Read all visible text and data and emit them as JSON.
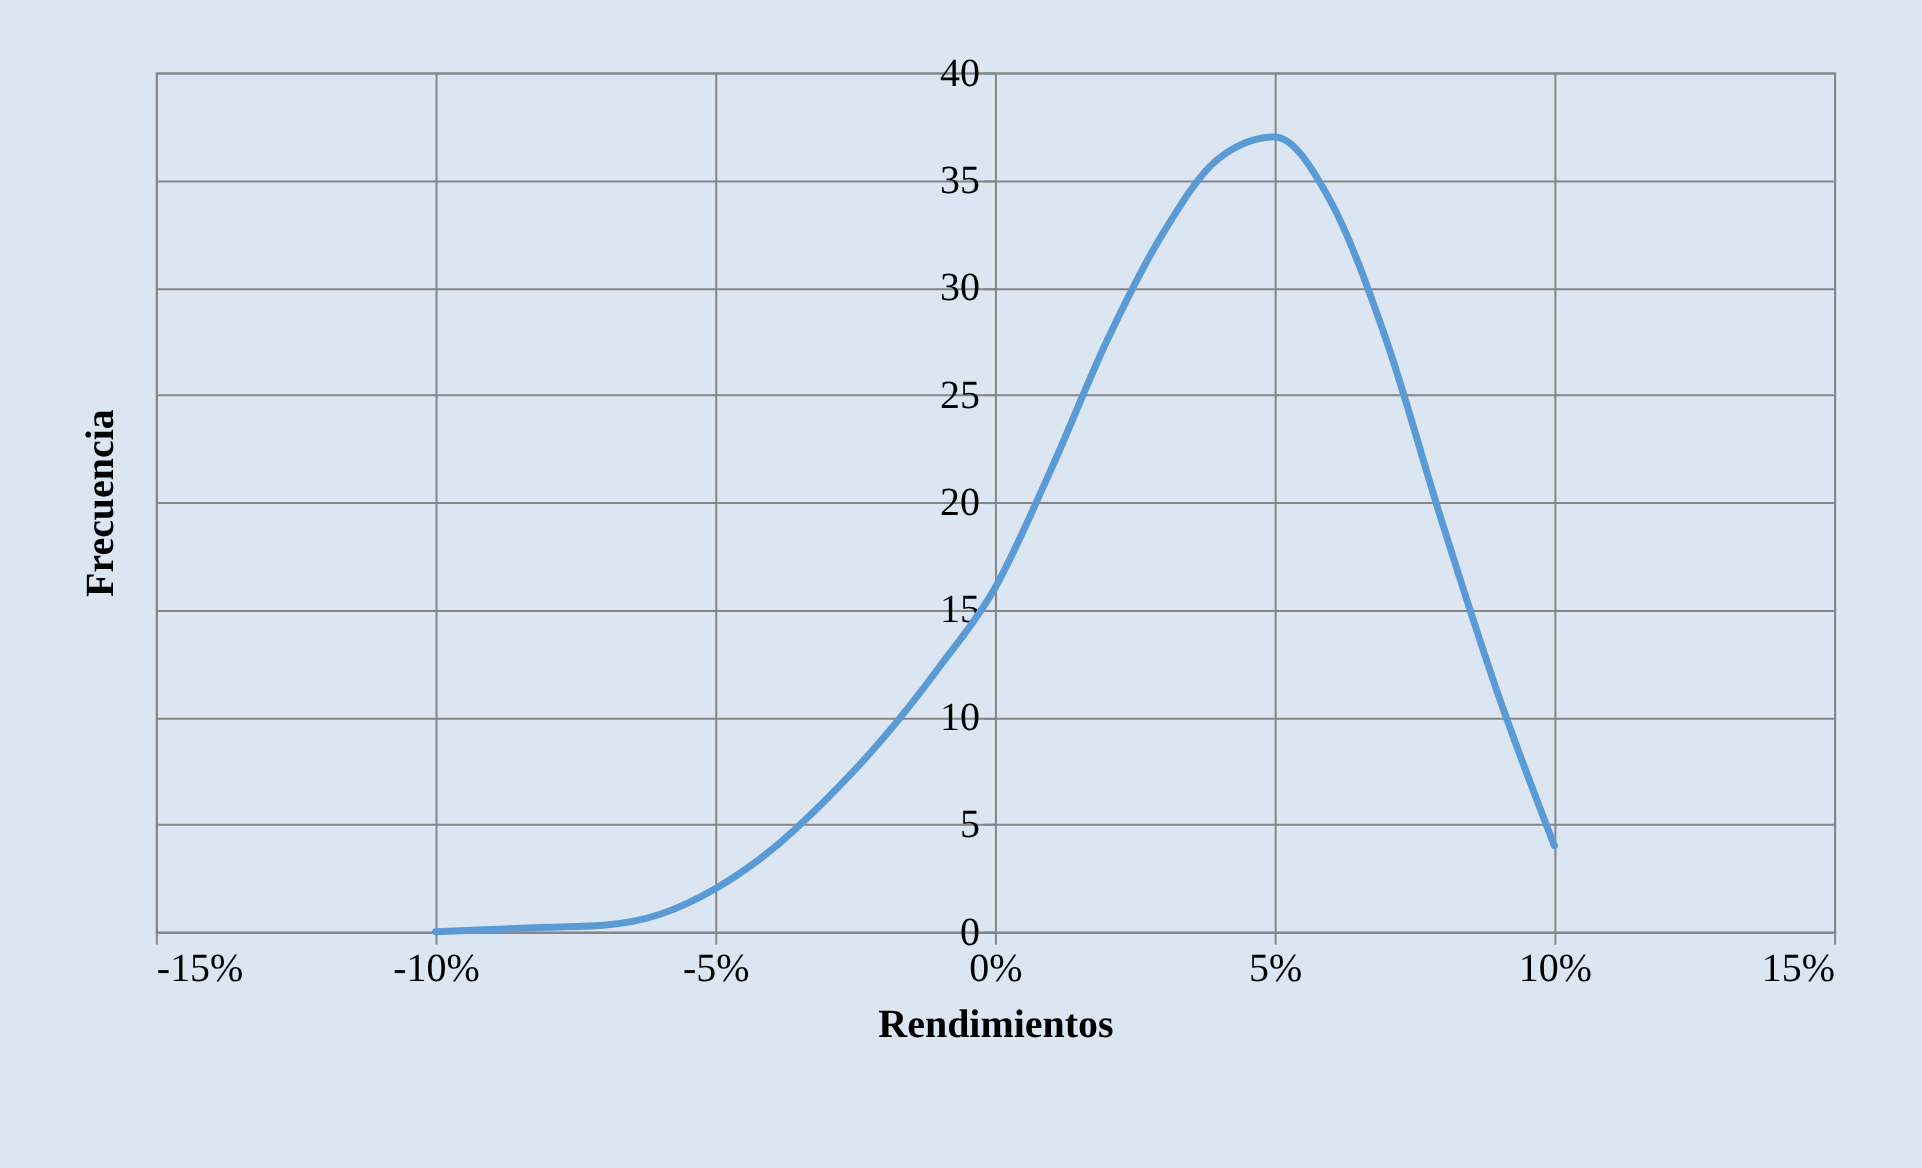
{
  "chart_data": {
    "type": "line",
    "xlabel": "Rendimientos",
    "ylabel": "Frecuencia",
    "x": [
      -10,
      -8,
      -7,
      -6,
      -5,
      -4,
      -3,
      -2,
      -1,
      0,
      1,
      2,
      3,
      4,
      5,
      6,
      7,
      8,
      9,
      10
    ],
    "series": [
      {
        "color": "#5b9bd5",
        "values": [
          0,
          0.2,
          0.3,
          0.8,
          2,
          3.8,
          6.2,
          9,
          12.3,
          16,
          21.5,
          27.5,
          32.5,
          36,
          37,
          34,
          27.5,
          19,
          11,
          4
        ]
      }
    ],
    "xlim": [
      -15,
      15
    ],
    "xticks": [
      {
        "value": -15,
        "label": "-15%"
      },
      {
        "value": -10,
        "label": "-10%"
      },
      {
        "value": -5,
        "label": "-5%"
      },
      {
        "value": 0,
        "label": "0%"
      },
      {
        "value": 5,
        "label": "5%"
      },
      {
        "value": 10,
        "label": "10%"
      },
      {
        "value": 15,
        "label": "15%"
      }
    ],
    "ylim": [
      0,
      40
    ],
    "yticks": [
      0,
      5,
      10,
      15,
      20,
      25,
      30,
      35,
      40
    ],
    "grid": true,
    "marker": "none",
    "line_style": "solid"
  }
}
